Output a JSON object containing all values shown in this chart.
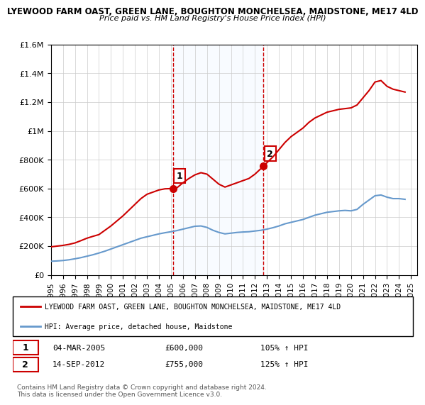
{
  "title1": "LYEWOOD FARM OAST, GREEN LANE, BOUGHTON MONCHELSEA, MAIDSTONE, ME17 4LD",
  "title2": "Price paid vs. HM Land Registry's House Price Index (HPI)",
  "legend_label_red": "LYEWOOD FARM OAST, GREEN LANE, BOUGHTON MONCHELSEA, MAIDSTONE, ME17 4LD",
  "legend_label_blue": "HPI: Average price, detached house, Maidstone",
  "sale1_label": "1",
  "sale1_date": "04-MAR-2005",
  "sale1_price": "£600,000",
  "sale1_hpi": "105% ↑ HPI",
  "sale2_label": "2",
  "sale2_date": "14-SEP-2012",
  "sale2_price": "£755,000",
  "sale2_hpi": "125% ↑ HPI",
  "copyright": "Contains HM Land Registry data © Crown copyright and database right 2024.\nThis data is licensed under the Open Government Licence v3.0.",
  "red_color": "#cc0000",
  "blue_color": "#6699cc",
  "vline_color": "#cc0000",
  "shade_color": "#ddeeff",
  "background_color": "#ffffff",
  "grid_color": "#cccccc",
  "ylim": [
    0,
    1600000
  ],
  "xlim_start": 1995.0,
  "xlim_end": 2025.5,
  "sale1_year": 2005.17,
  "sale2_year": 2012.71,
  "red_x": [
    1995.0,
    1995.5,
    1996.0,
    1996.5,
    1997.0,
    1997.5,
    1998.0,
    1998.5,
    1999.0,
    1999.5,
    2000.0,
    2000.5,
    2001.0,
    2001.5,
    2002.0,
    2002.5,
    2003.0,
    2003.5,
    2004.0,
    2004.5,
    2005.17,
    2005.5,
    2006.0,
    2006.5,
    2007.0,
    2007.5,
    2008.0,
    2008.5,
    2009.0,
    2009.5,
    2010.0,
    2010.5,
    2011.0,
    2011.5,
    2012.0,
    2012.71,
    2013.0,
    2013.5,
    2014.0,
    2014.5,
    2015.0,
    2015.5,
    2016.0,
    2016.5,
    2017.0,
    2017.5,
    2018.0,
    2018.5,
    2019.0,
    2019.5,
    2020.0,
    2020.5,
    2021.0,
    2021.5,
    2022.0,
    2022.5,
    2023.0,
    2023.5,
    2024.0,
    2024.5
  ],
  "red_y": [
    195000,
    200000,
    205000,
    212000,
    222000,
    238000,
    255000,
    268000,
    280000,
    310000,
    340000,
    375000,
    410000,
    450000,
    490000,
    530000,
    560000,
    575000,
    590000,
    598000,
    600000,
    605000,
    640000,
    670000,
    695000,
    710000,
    700000,
    665000,
    630000,
    610000,
    625000,
    640000,
    655000,
    670000,
    700000,
    755000,
    780000,
    820000,
    870000,
    920000,
    960000,
    990000,
    1020000,
    1060000,
    1090000,
    1110000,
    1130000,
    1140000,
    1150000,
    1155000,
    1160000,
    1180000,
    1230000,
    1280000,
    1340000,
    1350000,
    1310000,
    1290000,
    1280000,
    1270000
  ],
  "blue_x": [
    1995.0,
    1995.5,
    1996.0,
    1996.5,
    1997.0,
    1997.5,
    1998.0,
    1998.5,
    1999.0,
    1999.5,
    2000.0,
    2000.5,
    2001.0,
    2001.5,
    2002.0,
    2002.5,
    2003.0,
    2003.5,
    2004.0,
    2004.5,
    2005.0,
    2005.5,
    2006.0,
    2006.5,
    2007.0,
    2007.5,
    2008.0,
    2008.5,
    2009.0,
    2009.5,
    2010.0,
    2010.5,
    2011.0,
    2011.5,
    2012.0,
    2012.5,
    2013.0,
    2013.5,
    2014.0,
    2014.5,
    2015.0,
    2015.5,
    2016.0,
    2016.5,
    2017.0,
    2017.5,
    2018.0,
    2018.5,
    2019.0,
    2019.5,
    2020.0,
    2020.5,
    2021.0,
    2021.5,
    2022.0,
    2022.5,
    2023.0,
    2023.5,
    2024.0,
    2024.5
  ],
  "blue_y": [
    95000,
    97000,
    100000,
    105000,
    112000,
    120000,
    130000,
    140000,
    152000,
    165000,
    180000,
    195000,
    210000,
    225000,
    240000,
    255000,
    265000,
    275000,
    285000,
    293000,
    300000,
    308000,
    318000,
    328000,
    338000,
    340000,
    330000,
    310000,
    295000,
    285000,
    290000,
    295000,
    298000,
    300000,
    305000,
    310000,
    318000,
    328000,
    340000,
    355000,
    365000,
    375000,
    385000,
    400000,
    415000,
    425000,
    435000,
    440000,
    445000,
    448000,
    445000,
    455000,
    490000,
    520000,
    550000,
    555000,
    540000,
    530000,
    530000,
    525000
  ]
}
